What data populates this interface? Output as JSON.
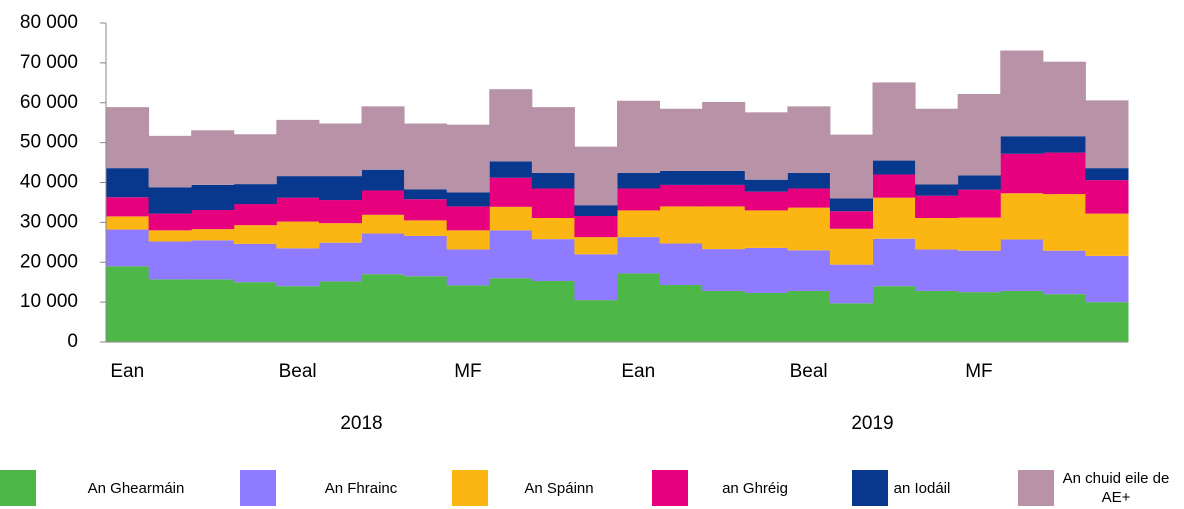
{
  "chart_data": {
    "type": "stacked_step_area",
    "categories": [
      "Ean",
      null,
      null,
      null,
      "Beal",
      null,
      null,
      null,
      "MF",
      null,
      null,
      null,
      "Ean",
      null,
      null,
      null,
      "Beal",
      null,
      null,
      null,
      "MF",
      null,
      null,
      null
    ],
    "groups": [
      "2018",
      "2019"
    ],
    "series": [
      {
        "name": "An Ghearmáin",
        "color": "#4db848",
        "values": [
          19000,
          15700,
          15700,
          15000,
          14000,
          15200,
          17000,
          16500,
          14200,
          16000,
          15300,
          10500,
          17200,
          14300,
          12800,
          12300,
          12800,
          9700,
          14000,
          12800,
          12500,
          12800,
          12000,
          10000
        ]
      },
      {
        "name": "An Fhrainc",
        "color": "#8f7bff",
        "values": [
          9200,
          9500,
          9800,
          9600,
          9500,
          9700,
          10200,
          10100,
          9000,
          12000,
          10500,
          11500,
          9100,
          10400,
          10500,
          11300,
          10200,
          9700,
          11900,
          10400,
          10400,
          12900,
          10900,
          11600
        ]
      },
      {
        "name": "An Spáinn",
        "color": "#fbb614",
        "values": [
          3300,
          2800,
          2800,
          4700,
          6700,
          4900,
          4700,
          3900,
          4800,
          5900,
          5300,
          4300,
          6700,
          9300,
          10700,
          9400,
          10700,
          9000,
          10300,
          7900,
          8300,
          11600,
          14200,
          10600
        ]
      },
      {
        "name": "an Ghréig",
        "color": "#e6007e",
        "values": [
          4800,
          4200,
          4800,
          5300,
          6000,
          5800,
          6100,
          5300,
          6000,
          7300,
          7400,
          5300,
          5500,
          5400,
          5400,
          4700,
          4800,
          4400,
          5800,
          5600,
          7000,
          9900,
          10400,
          8400
        ]
      },
      {
        "name": "an Iodáil",
        "color": "#07388e",
        "values": [
          7300,
          6600,
          6300,
          5000,
          5400,
          6000,
          5200,
          2500,
          3500,
          4100,
          3900,
          2700,
          3900,
          3500,
          3500,
          3000,
          3900,
          3200,
          3500,
          2800,
          3600,
          4400,
          4100,
          3000
        ]
      },
      {
        "name": "An chuid eile de AE+",
        "color": "#b893a7",
        "values": [
          15300,
          12900,
          13700,
          12500,
          14100,
          13200,
          15900,
          16500,
          17000,
          18100,
          16500,
          14700,
          18100,
          15600,
          17300,
          16900,
          16700,
          16000,
          19600,
          19000,
          20400,
          21500,
          18700,
          17000
        ]
      }
    ],
    "ylim": [
      0,
      80000
    ],
    "yticks": [
      0,
      {
        "value": 10000,
        "label": "10 000"
      },
      {
        "value": 20000,
        "label": "20 000"
      },
      {
        "value": 30000,
        "label": "30 000"
      },
      {
        "value": 40000,
        "label": "40 000"
      },
      {
        "value": 50000,
        "label": "50 000"
      },
      {
        "value": 60000,
        "label": "60 000"
      },
      {
        "value": 70000,
        "label": "70 000"
      },
      {
        "value": 80000,
        "label": "80 000"
      }
    ],
    "grid": false,
    "legend": "bottom"
  }
}
